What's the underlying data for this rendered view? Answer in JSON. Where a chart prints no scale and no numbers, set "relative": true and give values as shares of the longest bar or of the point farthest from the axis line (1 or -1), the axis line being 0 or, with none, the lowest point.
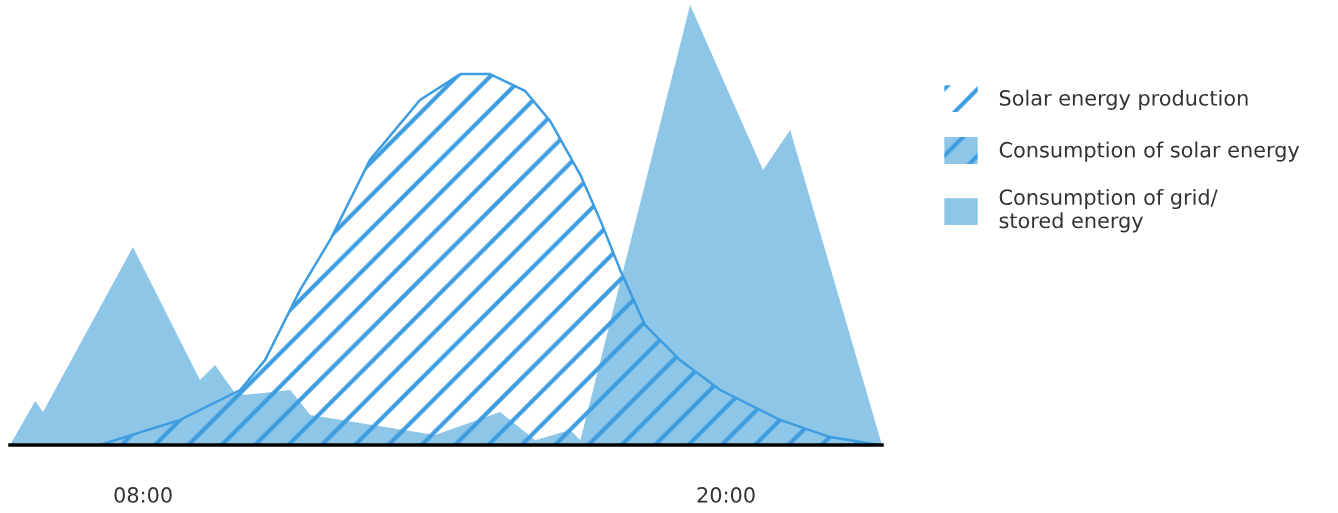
{
  "chart_data": {
    "type": "area",
    "relative": true,
    "xlim": [
      5.26,
      23.21
    ],
    "xticks": [
      {
        "value": 8,
        "label": "08:00"
      },
      {
        "value": 20,
        "label": "20:00"
      }
    ],
    "tick_labels": "x",
    "grid": false,
    "legend": "right",
    "series": [
      {
        "name": "Solar energy production",
        "color": "#3d9de0",
        "x": [
          7.11,
          8.76,
          10.0,
          10.51,
          11.23,
          11.85,
          12.67,
          13.7,
          14.53,
          15.14,
          15.86,
          16.38,
          17.0,
          17.41,
          17.82,
          18.33,
          19.05,
          19.88,
          21.11,
          22.14,
          23.17
        ],
        "values": [
          0,
          0.057,
          0.125,
          0.193,
          0.352,
          0.466,
          0.648,
          0.784,
          0.843,
          0.843,
          0.805,
          0.736,
          0.614,
          0.511,
          0.398,
          0.273,
          0.193,
          0.125,
          0.057,
          0.018,
          0
        ]
      },
      {
        "name": "Consumption of solar energy",
        "color": "#3d9de0",
        "x": [
          7.11,
          8.76,
          9.89,
          10.1,
          11.03,
          11.44,
          14.01,
          15.35,
          16.07,
          16.79,
          17.0,
          17.86,
          18.33,
          19.05,
          19.88,
          21.11,
          22.14,
          23.17
        ],
        "values": [
          0,
          0.057,
          0.118,
          0.114,
          0.125,
          0.068,
          0.023,
          0.075,
          0.011,
          0.034,
          0.011,
          0.387,
          0.273,
          0.193,
          0.125,
          0.057,
          0.018,
          0
        ]
      },
      {
        "name": "Consumption of grid/\nstored energy",
        "color": "#8ec6e8",
        "x": [
          5.26,
          5.78,
          5.94,
          7.79,
          9.17,
          9.48,
          9.89,
          10.1,
          11.03,
          11.44,
          14.01,
          15.35,
          16.07,
          16.79,
          17.0,
          17.86,
          19.26,
          20.76,
          21.32,
          23.21
        ],
        "values": [
          0,
          0.1,
          0.075,
          0.45,
          0.148,
          0.182,
          0.118,
          null,
          null,
          null,
          null,
          null,
          null,
          null,
          null,
          0.387,
          1.0,
          0.625,
          0.716,
          0
        ]
      }
    ]
  }
}
